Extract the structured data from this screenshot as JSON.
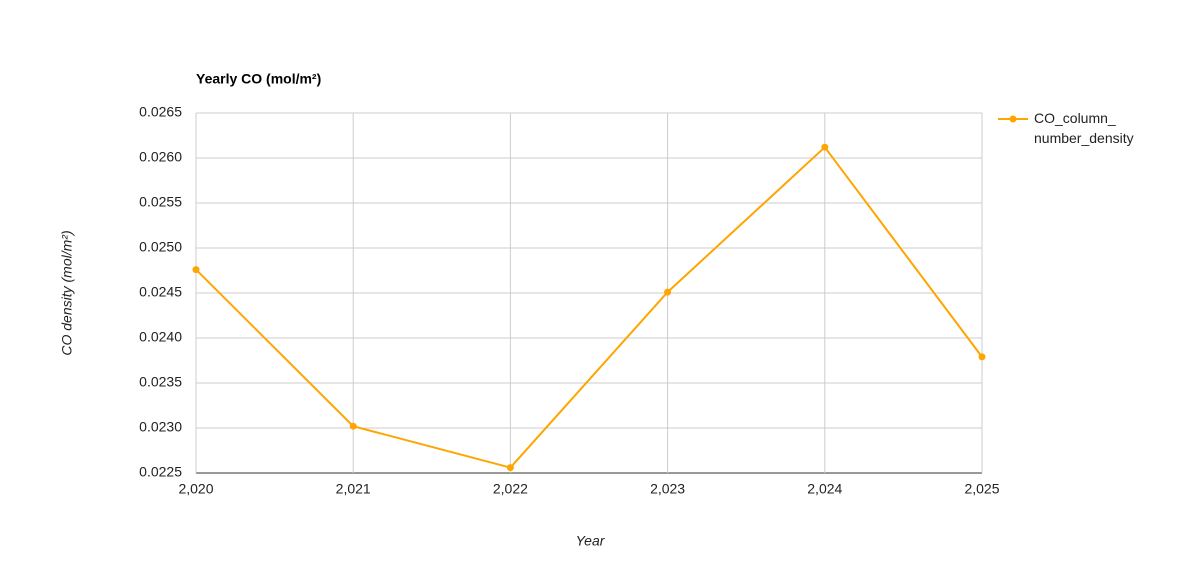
{
  "chart_data": {
    "type": "line",
    "title": "Yearly CO (mol/m²)",
    "x_label": "Year",
    "y_label": "CO density (mol/m²)",
    "x": [
      2020,
      2021,
      2022,
      2023,
      2024,
      2025
    ],
    "series": [
      {
        "name": "CO_column_number_density",
        "color": "#ffa500",
        "values": [
          0.02476,
          0.02302,
          0.02256,
          0.02451,
          0.02612,
          0.02379
        ]
      }
    ],
    "xlim": [
      2020,
      2025
    ],
    "xticks": [
      {
        "value": 2020,
        "label": "2,020"
      },
      {
        "value": 2021,
        "label": "2,021"
      },
      {
        "value": 2022,
        "label": "2,022"
      },
      {
        "value": 2023,
        "label": "2,023"
      },
      {
        "value": 2024,
        "label": "2,024"
      },
      {
        "value": 2025,
        "label": "2,025"
      }
    ],
    "ylim": [
      0.0225,
      0.0265
    ],
    "yticks": [
      0.0225,
      {
        "value": 0.023,
        "label": "0.0230"
      },
      0.0235,
      {
        "value": 0.024,
        "label": "0.0240"
      },
      0.0245,
      {
        "value": 0.025,
        "label": "0.0250"
      },
      0.0255,
      {
        "value": 0.026,
        "label": "0.0260"
      },
      0.0265
    ],
    "grid": true,
    "legend": "right"
  }
}
